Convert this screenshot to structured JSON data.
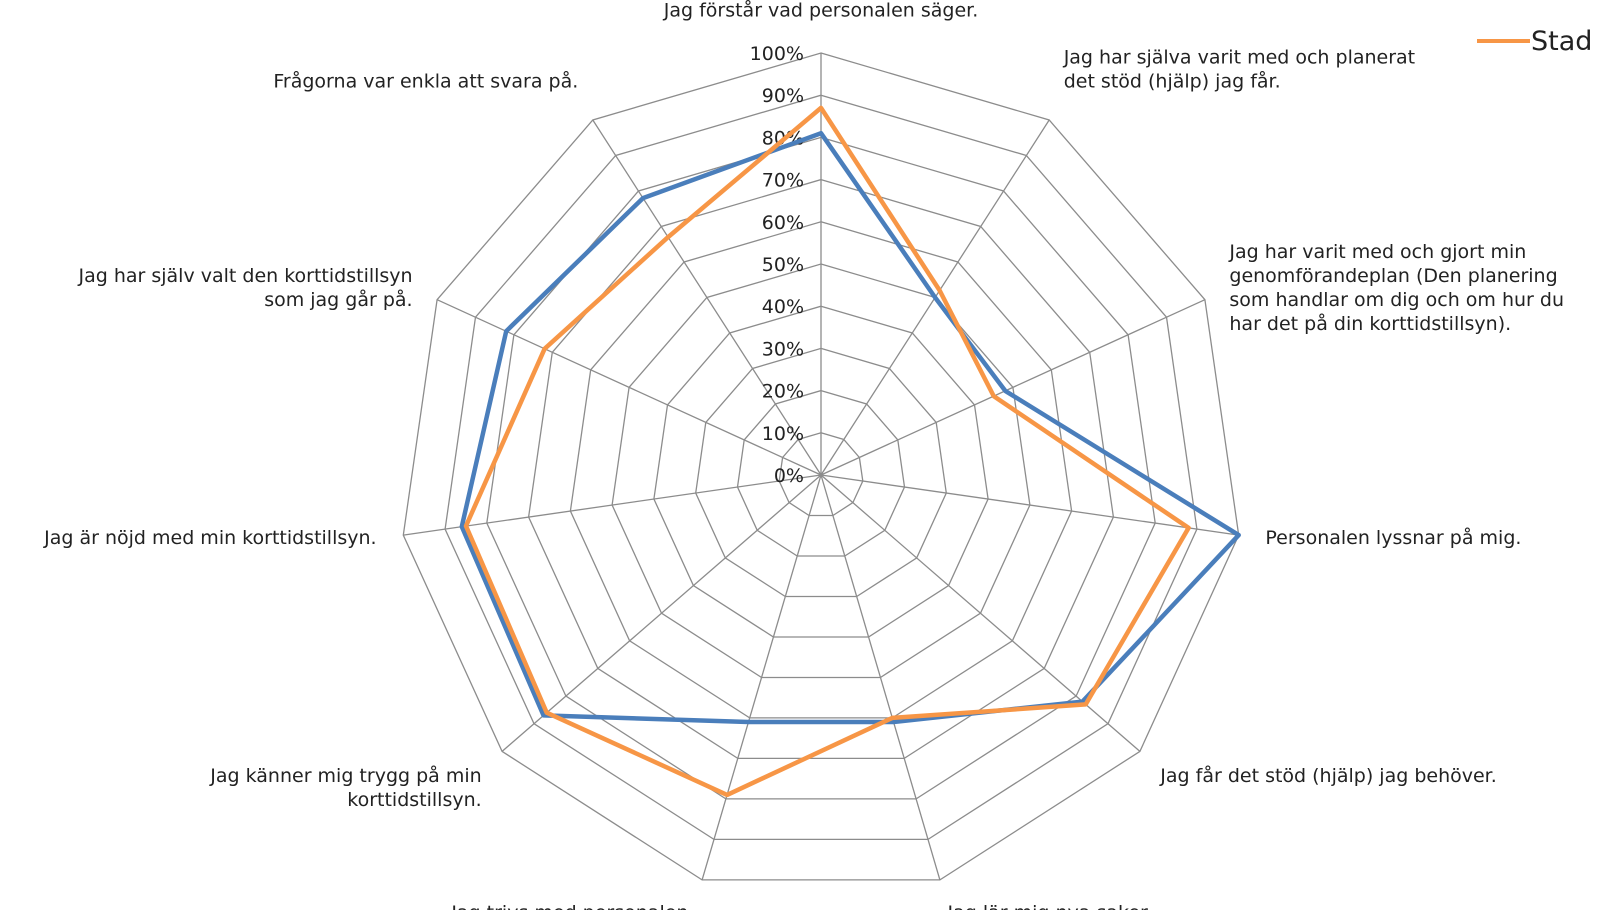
{
  "chart_data": {
    "type": "radar",
    "title": "",
    "categories": [
      [
        "Jag förstår vad personalen säger."
      ],
      [
        "Jag har själva varit med och planerat",
        "det stöd (hjälp) jag får."
      ],
      [
        "Jag har varit med och gjort min",
        "genomförandeplan (Den planering",
        "som handlar om dig och om hur du",
        "har det på din korttidstillsyn)."
      ],
      [
        "Personalen lyssnar på mig."
      ],
      [
        "Jag får det stöd (hjälp) jag behöver."
      ],
      [
        "Jag lär mig nya saker."
      ],
      [
        "Jag trivs med personalen."
      ],
      [
        "Jag känner mig trygg på min",
        "korttidstillsyn."
      ],
      [
        "Jag är nöjd med min korttidstillsyn."
      ],
      [
        "Jag har själv valt den korttidstillsyn",
        "som jag går på."
      ],
      [
        "Frågorna var enkla att svara på."
      ]
    ],
    "r_ticks": [
      "0%",
      "10%",
      "20%",
      "30%",
      "40%",
      "50%",
      "60%",
      "70%",
      "80%",
      "90%",
      "100%"
    ],
    "rlim": [
      0,
      100
    ],
    "grid": true,
    "legend_position": "top-right",
    "series": [
      {
        "name": "",
        "color": "#4a7ebb",
        "values": [
          81,
          50,
          48,
          100,
          82,
          61,
          61,
          87,
          86,
          82,
          78
        ]
      },
      {
        "name": "Stad",
        "color": "#f79646",
        "values": [
          87,
          52,
          45,
          88,
          83,
          60,
          79,
          86,
          85,
          72,
          67
        ]
      }
    ]
  }
}
